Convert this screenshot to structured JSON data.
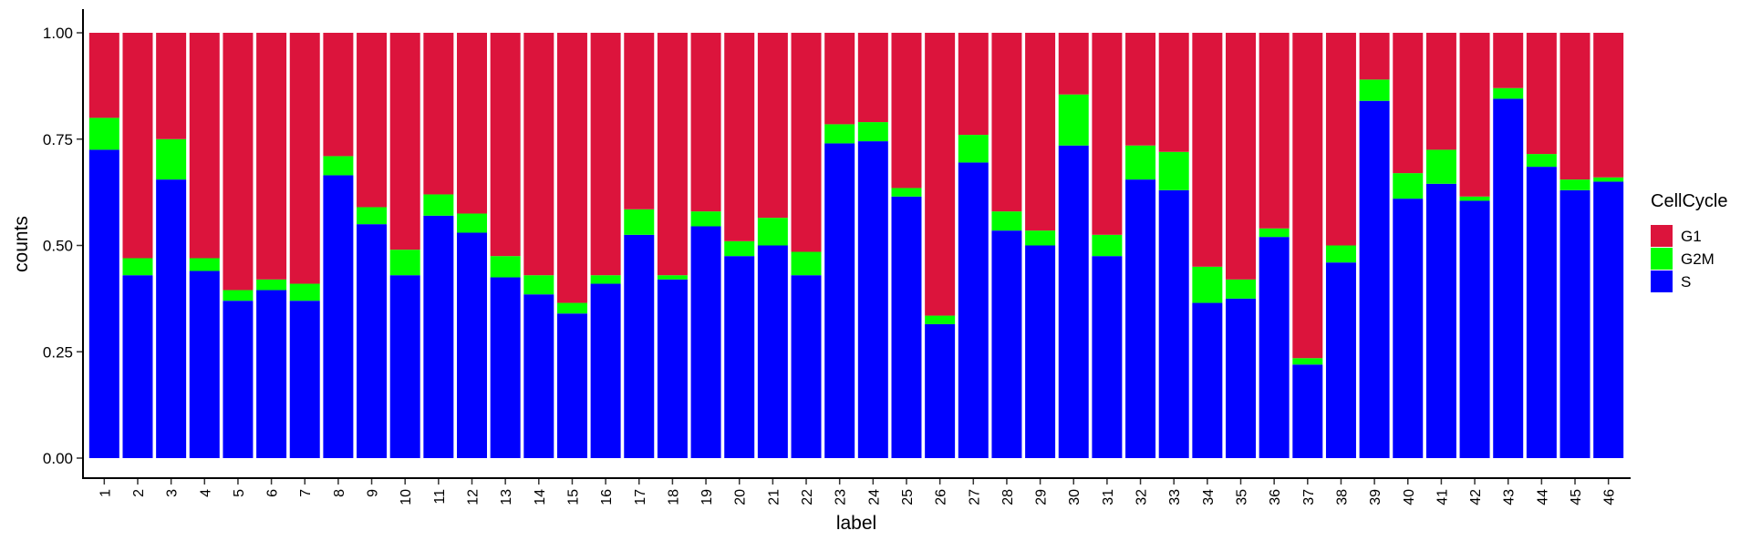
{
  "chart_data": {
    "type": "bar",
    "stacked": true,
    "normalized": true,
    "xlabel": "label",
    "ylabel": "counts",
    "ylim": [
      0,
      1
    ],
    "yticks": [
      "0.00",
      "0.25",
      "0.50",
      "0.75",
      "1.00"
    ],
    "categories": [
      "1",
      "2",
      "3",
      "4",
      "5",
      "6",
      "7",
      "8",
      "9",
      "10",
      "11",
      "12",
      "13",
      "14",
      "15",
      "16",
      "17",
      "18",
      "19",
      "20",
      "21",
      "22",
      "23",
      "24",
      "25",
      "26",
      "27",
      "28",
      "29",
      "30",
      "31",
      "32",
      "33",
      "34",
      "35",
      "36",
      "37",
      "38",
      "39",
      "40",
      "41",
      "42",
      "43",
      "44",
      "45",
      "46"
    ],
    "legend": {
      "title": "CellCycle",
      "position": "right"
    },
    "grid": false,
    "series": [
      {
        "name": "S",
        "color": "#0000FF",
        "values": [
          0.725,
          0.43,
          0.655,
          0.44,
          0.37,
          0.395,
          0.37,
          0.665,
          0.55,
          0.43,
          0.57,
          0.53,
          0.425,
          0.385,
          0.34,
          0.41,
          0.525,
          0.42,
          0.545,
          0.475,
          0.5,
          0.43,
          0.74,
          0.745,
          0.615,
          0.315,
          0.695,
          0.535,
          0.5,
          0.735,
          0.475,
          0.655,
          0.63,
          0.365,
          0.375,
          0.52,
          0.22,
          0.46,
          0.84,
          0.61,
          0.645,
          0.605,
          0.845,
          0.685,
          0.63,
          0.65
        ]
      },
      {
        "name": "G2M",
        "color": "#00FF00",
        "values": [
          0.075,
          0.04,
          0.095,
          0.03,
          0.025,
          0.025,
          0.04,
          0.045,
          0.04,
          0.06,
          0.05,
          0.045,
          0.05,
          0.045,
          0.025,
          0.02,
          0.06,
          0.01,
          0.035,
          0.035,
          0.065,
          0.055,
          0.045,
          0.045,
          0.02,
          0.02,
          0.065,
          0.045,
          0.035,
          0.12,
          0.05,
          0.08,
          0.09,
          0.085,
          0.045,
          0.02,
          0.015,
          0.04,
          0.05,
          0.06,
          0.08,
          0.01,
          0.025,
          0.03,
          0.025,
          0.01
        ]
      },
      {
        "name": "G1",
        "color": "#DC143C",
        "values": [
          0.2,
          0.53,
          0.25,
          0.53,
          0.605,
          0.58,
          0.59,
          0.29,
          0.41,
          0.51,
          0.38,
          0.425,
          0.525,
          0.57,
          0.635,
          0.57,
          0.415,
          0.57,
          0.42,
          0.49,
          0.435,
          0.515,
          0.215,
          0.21,
          0.365,
          0.665,
          0.24,
          0.42,
          0.465,
          0.145,
          0.475,
          0.265,
          0.28,
          0.55,
          0.58,
          0.46,
          0.765,
          0.5,
          0.11,
          0.33,
          0.275,
          0.385,
          0.13,
          0.285,
          0.345,
          0.34
        ]
      }
    ]
  }
}
